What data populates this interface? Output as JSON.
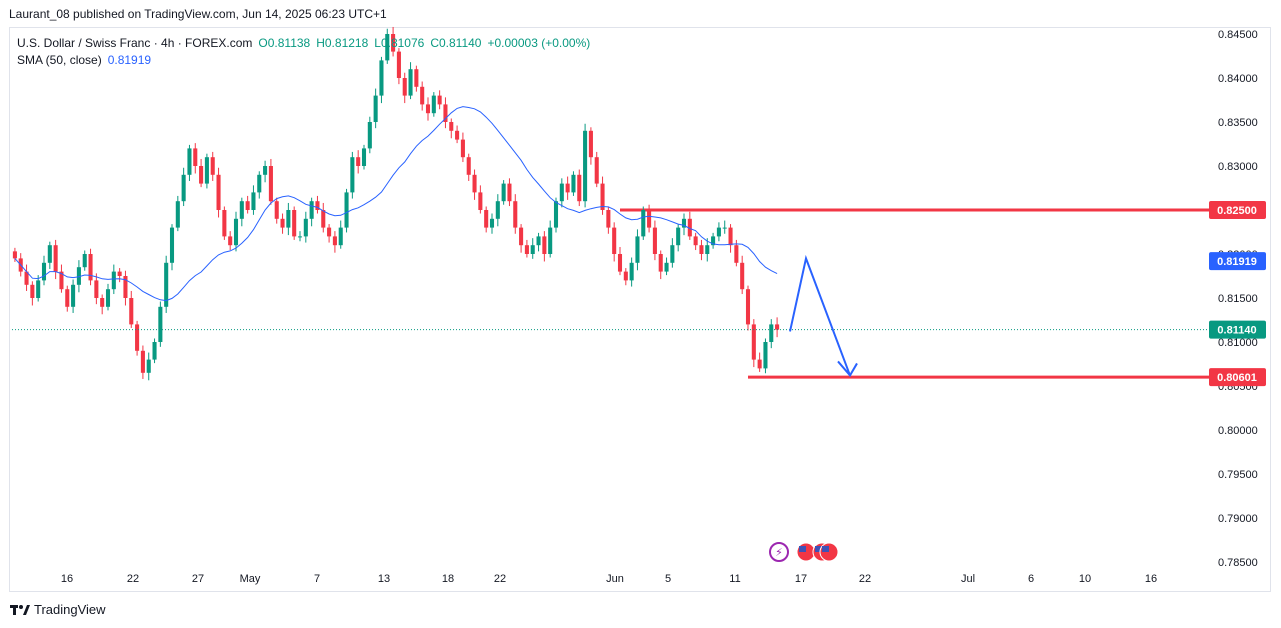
{
  "header": {
    "published": "Laurant_08 published on TradingView.com, Jun 14, 2025 06:23 UTC+1"
  },
  "legend": {
    "symbol": "U.S. Dollar / Swiss Franc · 4h · FOREX.com",
    "open": "O0.81138",
    "high": "H0.81218",
    "low": "L0.81076",
    "close": "C0.81140",
    "change": "+0.00003 (+0.00%)",
    "sma_label": "SMA (50, close)",
    "sma_value": "0.81919"
  },
  "colors": {
    "up": "#089981",
    "down": "#f23645",
    "sma": "#2962ff",
    "level_line": "#f23645",
    "arrow": "#2962ff"
  },
  "footer": {
    "brand": "TradingView"
  },
  "chart_data": {
    "type": "candlestick",
    "symbol": "USDCHF",
    "timeframe": "4h",
    "y_ticks": [
      "0.84500",
      "0.84000",
      "0.83500",
      "0.83000",
      "0.82500",
      "0.82000",
      "0.81500",
      "0.81000",
      "0.80500",
      "0.80000",
      "0.79500",
      "0.79000",
      "0.78500"
    ],
    "y_tick_values": [
      0.845,
      0.84,
      0.835,
      0.83,
      0.825,
      0.82,
      0.815,
      0.81,
      0.805,
      0.8,
      0.795,
      0.79,
      0.785
    ],
    "x_ticks": [
      "16",
      "22",
      "27",
      "May",
      "7",
      "13",
      "18",
      "22",
      "Jun",
      "5",
      "11",
      "17",
      "22",
      "Jul",
      "6",
      "10",
      "16"
    ],
    "price_labels": [
      {
        "text": "0.82500",
        "value": 0.825,
        "color": "#f23645"
      },
      {
        "text": "0.81919",
        "value": 0.81919,
        "color": "#2962ff"
      },
      {
        "text": "0.81140",
        "value": 0.8114,
        "color": "#089981"
      },
      {
        "text": "0.80601",
        "value": 0.80601,
        "color": "#f23645"
      }
    ],
    "horizontal_levels": [
      0.825,
      0.80601
    ],
    "close_series": [
      0.8195,
      0.818,
      0.8165,
      0.815,
      0.817,
      0.819,
      0.821,
      0.818,
      0.816,
      0.814,
      0.8165,
      0.8185,
      0.82,
      0.817,
      0.815,
      0.814,
      0.816,
      0.818,
      0.8175,
      0.815,
      0.812,
      0.809,
      0.8065,
      0.808,
      0.81,
      0.814,
      0.819,
      0.823,
      0.826,
      0.829,
      0.832,
      0.83,
      0.828,
      0.831,
      0.829,
      0.825,
      0.822,
      0.821,
      0.824,
      0.826,
      0.825,
      0.827,
      0.829,
      0.83,
      0.826,
      0.824,
      0.823,
      0.825,
      0.822,
      0.822,
      0.824,
      0.826,
      0.825,
      0.823,
      0.822,
      0.821,
      0.823,
      0.827,
      0.831,
      0.83,
      0.832,
      0.835,
      0.838,
      0.842,
      0.845,
      0.843,
      0.84,
      0.838,
      0.841,
      0.839,
      0.837,
      0.836,
      0.838,
      0.837,
      0.835,
      0.834,
      0.833,
      0.831,
      0.829,
      0.827,
      0.825,
      0.823,
      0.824,
      0.826,
      0.828,
      0.826,
      0.823,
      0.821,
      0.82,
      0.821,
      0.822,
      0.82,
      0.823,
      0.826,
      0.828,
      0.827,
      0.829,
      0.826,
      0.834,
      0.831,
      0.828,
      0.825,
      0.823,
      0.82,
      0.818,
      0.817,
      0.819,
      0.822,
      0.825,
      0.823,
      0.82,
      0.818,
      0.819,
      0.821,
      0.823,
      0.824,
      0.822,
      0.821,
      0.82,
      0.821,
      0.822,
      0.823,
      0.823,
      0.821,
      0.819,
      0.816,
      0.812,
      0.808,
      0.807,
      0.81,
      0.812,
      0.8114
    ],
    "sma_series_note": "SMA (50, close)",
    "projection": {
      "from": 0.8112,
      "peak": 0.8195,
      "target": 0.8062
    }
  }
}
